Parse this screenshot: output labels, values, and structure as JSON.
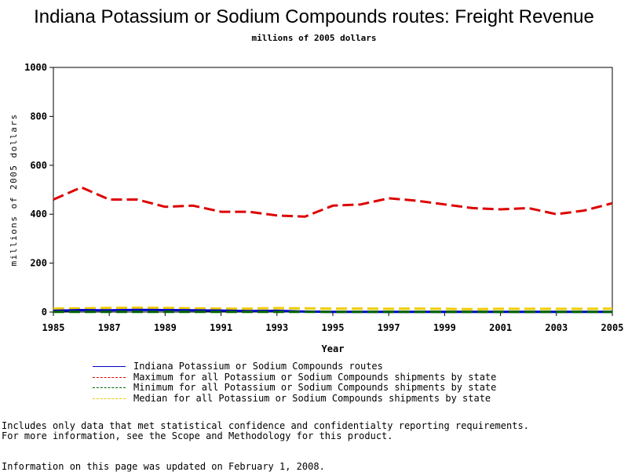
{
  "colors": {
    "indiana": "#0000cc",
    "maximum": "#dd0000",
    "minimum": "#006600",
    "median": "#eecc00"
  },
  "chart_data": {
    "type": "line",
    "title": "Indiana Potassium or Sodium Compounds routes: Freight Revenue",
    "subtitle": "millions of 2005 dollars",
    "xlabel": "Year",
    "ylabel": "millions of 2005 dollars",
    "xlim": [
      1985,
      2005
    ],
    "ylim": [
      0,
      1000
    ],
    "xticks": [
      1985,
      1987,
      1989,
      1991,
      1993,
      1995,
      1997,
      1999,
      2001,
      2003,
      2005
    ],
    "yticks": [
      0,
      200,
      400,
      600,
      800,
      1000
    ],
    "grid": false,
    "legend_position": "bottom",
    "x": [
      1985,
      1986,
      1987,
      1988,
      1989,
      1990,
      1991,
      1992,
      1993,
      1994,
      1995,
      1996,
      1997,
      1998,
      1999,
      2000,
      2001,
      2002,
      2003,
      2004,
      2005
    ],
    "series": [
      {
        "name": "Indiana Potassium or Sodium Compounds routes",
        "color_key": "indiana",
        "style": "solid",
        "values": [
          5,
          8,
          7,
          9,
          8,
          7,
          6,
          4,
          5,
          2,
          1,
          1,
          1,
          1,
          1,
          1,
          1,
          1,
          1,
          1,
          1
        ]
      },
      {
        "name": "Maximum for all Potassium or Sodium Compounds shipments by state",
        "color_key": "maximum",
        "style": "dashed",
        "values": [
          460,
          510,
          460,
          460,
          430,
          435,
          410,
          410,
          395,
          390,
          435,
          440,
          465,
          455,
          440,
          425,
          420,
          425,
          400,
          415,
          445
        ]
      },
      {
        "name": "Minimum for all Potassium or Sodium Compounds shipments by state",
        "color_key": "minimum",
        "style": "dashed",
        "values": [
          1,
          1,
          1,
          1,
          1,
          1,
          1,
          1,
          1,
          1,
          1,
          1,
          1,
          1,
          1,
          1,
          1,
          1,
          1,
          1,
          1
        ]
      },
      {
        "name": "Median for all Potassium or Sodium Compounds shipments by state",
        "color_key": "median",
        "style": "dashed",
        "values": [
          14,
          15,
          17,
          18,
          17,
          15,
          14,
          14,
          16,
          15,
          14,
          14,
          13,
          14,
          13,
          12,
          13,
          13,
          13,
          13,
          14
        ]
      }
    ]
  },
  "notes": {
    "line1": "Includes only data that met statistical confidence and confidentialty reporting requirements.",
    "line2": "For more information, see the Scope and Methodology for this product.",
    "updated": "Information on this page was updated on February 1, 2008."
  }
}
